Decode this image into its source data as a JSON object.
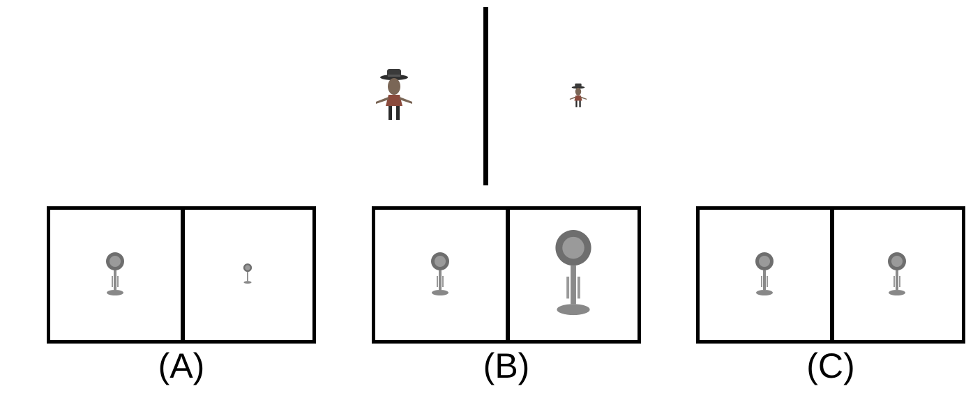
{
  "top_reference": {
    "left_figure": "cowboy-figure",
    "right_figure": "cowboy-figure",
    "divider": true
  },
  "options": [
    {
      "label": "(A)",
      "left_figure": "desk-lamp",
      "right_figure": "desk-lamp"
    },
    {
      "label": "(B)",
      "left_figure": "desk-lamp",
      "right_figure": "desk-lamp"
    },
    {
      "label": "(C)",
      "left_figure": "desk-lamp",
      "right_figure": "desk-lamp"
    }
  ],
  "colors": {
    "frame": "#000000",
    "lamp": "#8a8a8a",
    "hat": "#3a3a3a",
    "skin": "#7a6656",
    "clothing": "#8a4a3c"
  }
}
